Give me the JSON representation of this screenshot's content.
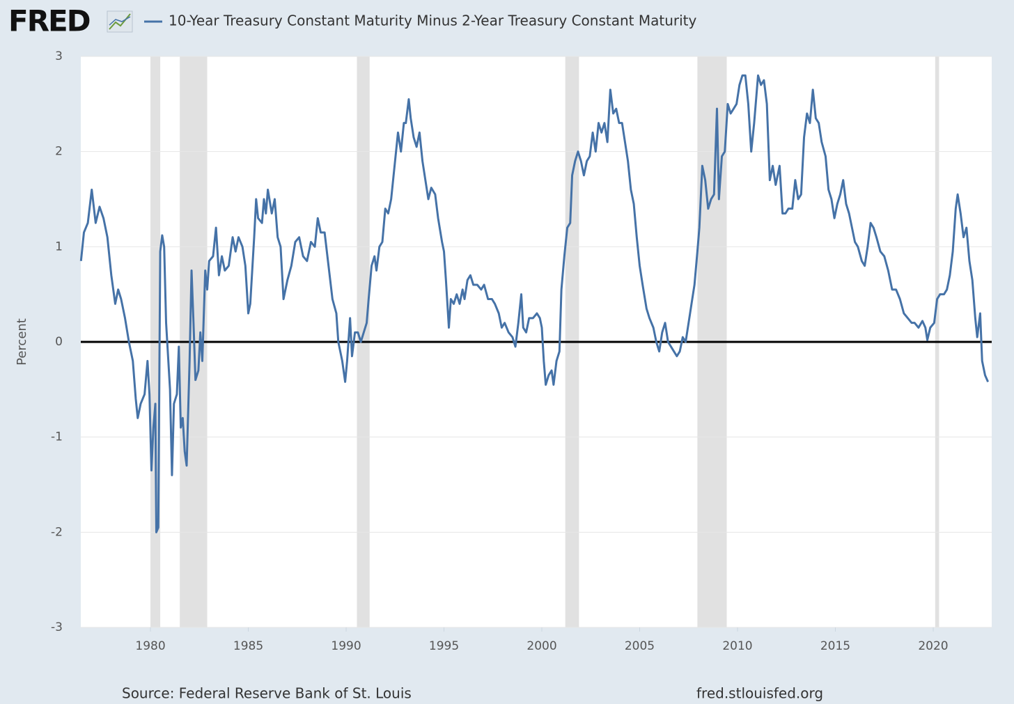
{
  "chart_data": {
    "type": "line",
    "logo": "FRED",
    "source": "Source: Federal Reserve Bank of St. Louis",
    "url": "fred.stlouisfed.org",
    "y_label": "Percent",
    "xlim": [
      1976.44,
      2022.99
    ],
    "xticks": [
      1980,
      1985,
      1990,
      1995,
      2000,
      2005,
      2010,
      2015,
      2020
    ],
    "ylim": [
      -3,
      3
    ],
    "yticks": [
      -3,
      -2,
      -1,
      0,
      1,
      2,
      3
    ],
    "grid": true,
    "horizontal_line": 0,
    "recession_color": "#e1e1e1",
    "recessions": [
      [
        1980.0,
        1980.5
      ],
      [
        1981.5,
        1982.9
      ],
      [
        1990.55,
        1991.2
      ],
      [
        2001.2,
        2001.9
      ],
      [
        2007.95,
        2009.45
      ],
      [
        2020.1,
        2020.3
      ]
    ],
    "x": [
      1976.45,
      1976.6,
      1976.8,
      1977.0,
      1977.2,
      1977.4,
      1977.6,
      1977.8,
      1978.0,
      1978.2,
      1978.35,
      1978.5,
      1978.7,
      1978.9,
      1979.1,
      1979.25,
      1979.35,
      1979.5,
      1979.7,
      1979.85,
      1979.95,
      1980.05,
      1980.15,
      1980.25,
      1980.3,
      1980.4,
      1980.5,
      1980.6,
      1980.7,
      1980.8,
      1981.0,
      1981.1,
      1981.2,
      1981.35,
      1981.45,
      1981.55,
      1981.65,
      1981.75,
      1981.85,
      1982.0,
      1982.1,
      1982.2,
      1982.3,
      1982.45,
      1982.55,
      1982.65,
      1982.8,
      1982.9,
      1983.0,
      1983.2,
      1983.35,
      1983.5,
      1983.65,
      1983.8,
      1984.0,
      1984.2,
      1984.35,
      1984.5,
      1984.7,
      1984.85,
      1985.0,
      1985.1,
      1985.3,
      1985.4,
      1985.5,
      1985.7,
      1985.8,
      1985.9,
      1986.0,
      1986.2,
      1986.35,
      1986.5,
      1986.65,
      1986.8,
      1987.0,
      1987.2,
      1987.4,
      1987.6,
      1987.8,
      1988.0,
      1988.2,
      1988.4,
      1988.55,
      1988.7,
      1988.9,
      1989.1,
      1989.3,
      1989.5,
      1989.6,
      1989.8,
      1989.95,
      1990.05,
      1990.2,
      1990.3,
      1990.45,
      1990.6,
      1990.75,
      1990.9,
      1991.05,
      1991.15,
      1991.3,
      1991.45,
      1991.55,
      1991.7,
      1991.85,
      1992.0,
      1992.15,
      1992.3,
      1992.45,
      1992.55,
      1992.65,
      1992.8,
      1992.95,
      1993.05,
      1993.2,
      1993.3,
      1993.45,
      1993.6,
      1993.75,
      1993.9,
      1994.05,
      1994.2,
      1994.35,
      1994.55,
      1994.7,
      1994.9,
      1995.0,
      1995.1,
      1995.25,
      1995.35,
      1995.5,
      1995.65,
      1995.8,
      1995.95,
      1996.05,
      1996.2,
      1996.35,
      1996.5,
      1996.7,
      1996.9,
      1997.05,
      1997.25,
      1997.45,
      1997.6,
      1997.8,
      1997.95,
      1998.1,
      1998.3,
      1998.5,
      1998.65,
      1998.8,
      1998.95,
      1999.05,
      1999.2,
      1999.35,
      1999.55,
      1999.75,
      1999.9,
      2000.0,
      2000.1,
      2000.2,
      2000.35,
      2000.5,
      2000.6,
      2000.75,
      2000.9,
      2001.0,
      2001.15,
      2001.3,
      2001.45,
      2001.55,
      2001.7,
      2001.85,
      2002.0,
      2002.15,
      2002.3,
      2002.45,
      2002.6,
      2002.75,
      2002.9,
      2003.05,
      2003.2,
      2003.35,
      2003.5,
      2003.65,
      2003.8,
      2003.95,
      2004.1,
      2004.25,
      2004.4,
      2004.55,
      2004.7,
      2004.85,
      2005.0,
      2005.15,
      2005.35,
      2005.5,
      2005.7,
      2005.85,
      2006.0,
      2006.15,
      2006.3,
      2006.45,
      2006.6,
      2006.75,
      2006.9,
      2007.05,
      2007.2,
      2007.35,
      2007.5,
      2007.65,
      2007.8,
      2007.95,
      2008.05,
      2008.2,
      2008.35,
      2008.5,
      2008.65,
      2008.8,
      2008.95,
      2009.05,
      2009.2,
      2009.35,
      2009.5,
      2009.65,
      2009.8,
      2009.95,
      2010.1,
      2010.25,
      2010.4,
      2010.55,
      2010.7,
      2010.85,
      2011.05,
      2011.2,
      2011.35,
      2011.5,
      2011.65,
      2011.8,
      2011.95,
      2012.15,
      2012.3,
      2012.45,
      2012.6,
      2012.8,
      2012.95,
      2013.1,
      2013.25,
      2013.4,
      2013.55,
      2013.7,
      2013.85,
      2014.0,
      2014.15,
      2014.3,
      2014.5,
      2014.65,
      2014.8,
      2014.95,
      2015.1,
      2015.25,
      2015.4,
      2015.55,
      2015.7,
      2015.85,
      2016.0,
      2016.15,
      2016.35,
      2016.5,
      2016.65,
      2016.8,
      2016.95,
      2017.1,
      2017.3,
      2017.5,
      2017.7,
      2017.9,
      2018.1,
      2018.3,
      2018.5,
      2018.7,
      2018.9,
      2019.05,
      2019.25,
      2019.45,
      2019.6,
      2019.7,
      2019.85,
      2020.05,
      2020.2,
      2020.35,
      2020.55,
      2020.7,
      2020.85,
      2021.0,
      2021.15,
      2021.25,
      2021.4,
      2021.55,
      2021.7,
      2021.85,
      2022.0,
      2022.15,
      2022.25,
      2022.4,
      2022.5,
      2022.65,
      2022.8
    ],
    "series": [
      {
        "name": "10-Year Treasury Constant Maturity Minus 2-Year Treasury Constant Maturity",
        "color": "#4572a7",
        "values": [
          0.85,
          1.15,
          1.25,
          1.6,
          1.25,
          1.42,
          1.3,
          1.1,
          0.7,
          0.4,
          0.55,
          0.45,
          0.25,
          0.0,
          -0.2,
          -0.6,
          -0.8,
          -0.65,
          -0.55,
          -0.2,
          -0.55,
          -1.35,
          -0.9,
          -0.65,
          -2.0,
          -1.95,
          0.95,
          1.12,
          1.0,
          0.2,
          -0.5,
          -1.4,
          -0.65,
          -0.55,
          -0.05,
          -0.9,
          -0.8,
          -1.15,
          -1.3,
          -0.2,
          0.75,
          0.2,
          -0.4,
          -0.3,
          0.1,
          -0.2,
          0.75,
          0.55,
          0.85,
          0.9,
          1.2,
          0.7,
          0.9,
          0.75,
          0.8,
          1.1,
          0.95,
          1.1,
          1.0,
          0.8,
          0.3,
          0.4,
          1.1,
          1.5,
          1.3,
          1.25,
          1.5,
          1.35,
          1.6,
          1.35,
          1.5,
          1.1,
          1.0,
          0.45,
          0.65,
          0.8,
          1.05,
          1.1,
          0.9,
          0.85,
          1.05,
          1.0,
          1.3,
          1.15,
          1.15,
          0.8,
          0.45,
          0.3,
          0.0,
          -0.2,
          -0.42,
          -0.2,
          0.25,
          -0.15,
          0.1,
          0.1,
          0.0,
          0.1,
          0.2,
          0.45,
          0.8,
          0.9,
          0.75,
          1.0,
          1.05,
          1.4,
          1.35,
          1.5,
          1.8,
          2.0,
          2.2,
          2.0,
          2.3,
          2.3,
          2.55,
          2.35,
          2.15,
          2.05,
          2.2,
          1.9,
          1.7,
          1.5,
          1.62,
          1.55,
          1.3,
          1.05,
          0.95,
          0.65,
          0.15,
          0.45,
          0.4,
          0.5,
          0.4,
          0.55,
          0.45,
          0.65,
          0.7,
          0.6,
          0.6,
          0.55,
          0.6,
          0.45,
          0.45,
          0.4,
          0.3,
          0.15,
          0.2,
          0.1,
          0.05,
          -0.05,
          0.2,
          0.5,
          0.15,
          0.1,
          0.25,
          0.25,
          0.3,
          0.25,
          0.15,
          -0.2,
          -0.45,
          -0.35,
          -0.3,
          -0.45,
          -0.2,
          -0.1,
          0.55,
          0.9,
          1.2,
          1.25,
          1.75,
          1.9,
          2.0,
          1.9,
          1.75,
          1.9,
          1.95,
          2.2,
          2.0,
          2.3,
          2.2,
          2.3,
          2.1,
          2.65,
          2.4,
          2.45,
          2.3,
          2.3,
          2.1,
          1.9,
          1.6,
          1.45,
          1.1,
          0.8,
          0.6,
          0.35,
          0.25,
          0.15,
          0.0,
          -0.1,
          0.1,
          0.2,
          0.0,
          -0.05,
          -0.1,
          -0.15,
          -0.1,
          0.05,
          0.0,
          0.2,
          0.4,
          0.6,
          0.95,
          1.2,
          1.85,
          1.7,
          1.4,
          1.5,
          1.55,
          2.45,
          1.5,
          1.95,
          2.0,
          2.5,
          2.4,
          2.45,
          2.5,
          2.7,
          2.8,
          2.8,
          2.5,
          2.0,
          2.3,
          2.8,
          2.7,
          2.75,
          2.5,
          1.7,
          1.85,
          1.65,
          1.85,
          1.35,
          1.35,
          1.4,
          1.4,
          1.7,
          1.5,
          1.55,
          2.15,
          2.4,
          2.3,
          2.65,
          2.35,
          2.3,
          2.1,
          1.95,
          1.6,
          1.5,
          1.3,
          1.45,
          1.55,
          1.7,
          1.45,
          1.35,
          1.2,
          1.05,
          1.0,
          0.85,
          0.8,
          1.0,
          1.25,
          1.2,
          1.1,
          0.95,
          0.9,
          0.75,
          0.55,
          0.55,
          0.45,
          0.3,
          0.25,
          0.2,
          0.2,
          0.15,
          0.22,
          0.15,
          0.02,
          0.15,
          0.2,
          0.45,
          0.5,
          0.5,
          0.55,
          0.7,
          0.95,
          1.4,
          1.55,
          1.35,
          1.1,
          1.2,
          0.85,
          0.65,
          0.25,
          0.05,
          0.3,
          -0.2,
          -0.35,
          -0.42
        ]
      }
    ]
  }
}
